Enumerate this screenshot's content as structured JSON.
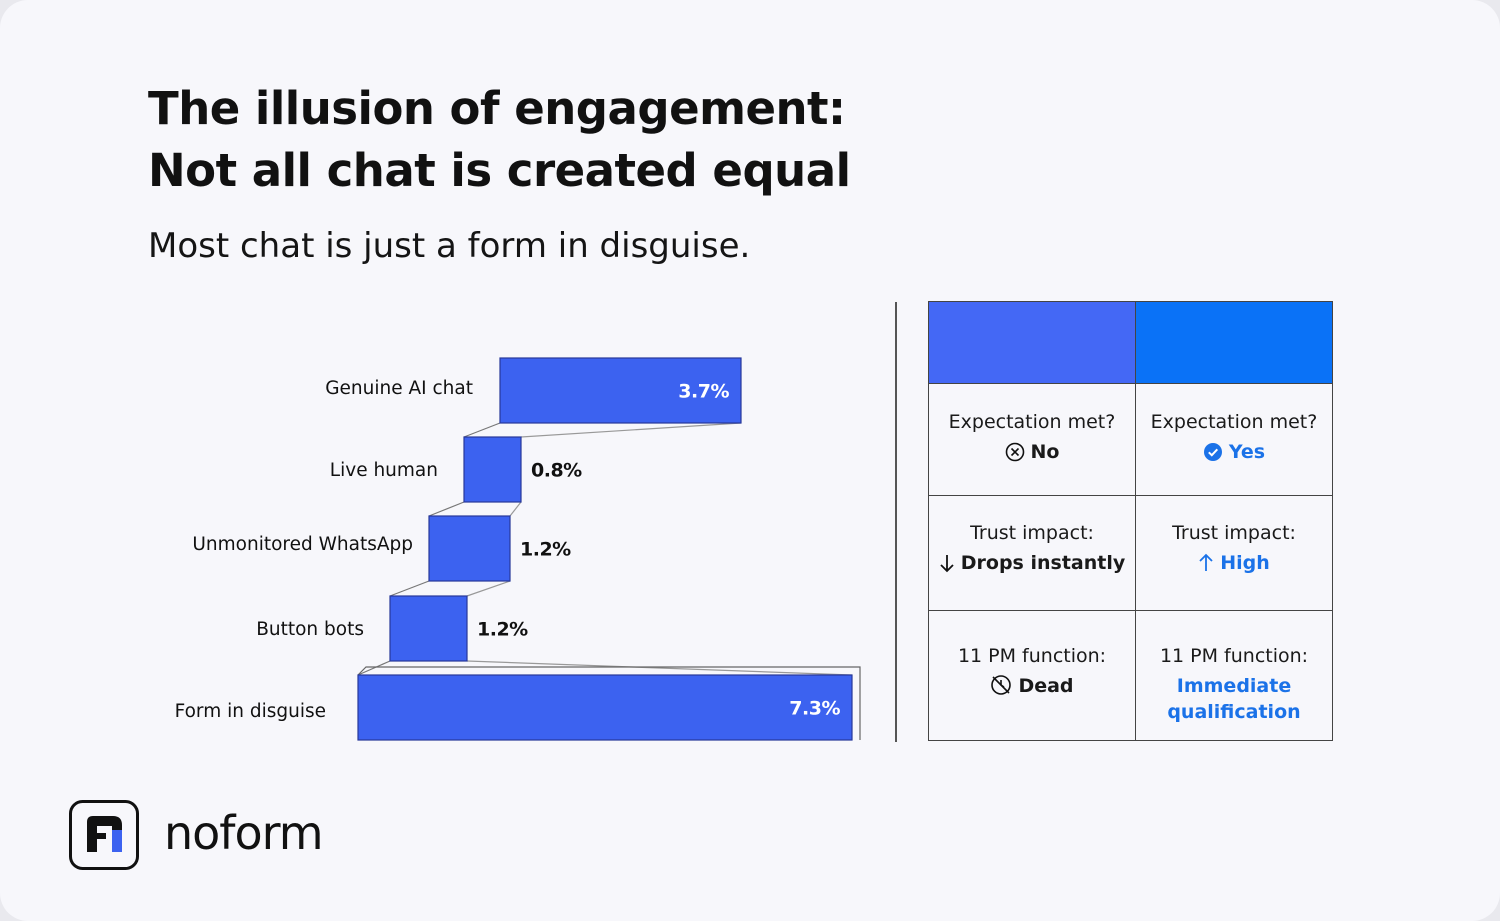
{
  "header": {
    "title_line1": "The illusion of engagement:",
    "title_line2": "Not all chat is created equal",
    "subtitle": "Most chat is just a form in disguise."
  },
  "chart_data": {
    "type": "bar",
    "categories": [
      "Genuine AI chat",
      "Live human",
      "Unmonitored WhatsApp",
      "Button bots",
      "Form in disguise"
    ],
    "values": [
      3.7,
      0.8,
      1.2,
      1.2,
      7.3
    ],
    "labels": [
      "3.7%",
      "0.8%",
      "1.2%",
      "1.2%",
      "7.3%"
    ],
    "bar_color": "#3c62f0",
    "title": "",
    "xlabel": "",
    "ylabel": ""
  },
  "comparison": {
    "header_colors": [
      "#4468f5",
      "#0a72f7"
    ],
    "rows": [
      {
        "left_label": "Expectation met?",
        "left_value": "No",
        "left_icon": "x-circle-icon",
        "right_label": "Expectation met?",
        "right_value": "Yes",
        "right_icon": "check-circle-icon"
      },
      {
        "left_label": "Trust impact:",
        "left_value": "Drops instantly",
        "left_icon": "arrow-down-icon",
        "right_label": "Trust impact:",
        "right_value": "High",
        "right_icon": "arrow-up-icon"
      },
      {
        "left_label": "11 PM function:",
        "left_value": "Dead",
        "left_icon": "clock-off-icon",
        "right_label": "11 PM function:",
        "right_value": "Immediate qualification",
        "right_icon": ""
      }
    ],
    "accent_color": "#1b72e8"
  },
  "brand": {
    "name": "noform",
    "logo_icon": "noform-logo-icon"
  }
}
